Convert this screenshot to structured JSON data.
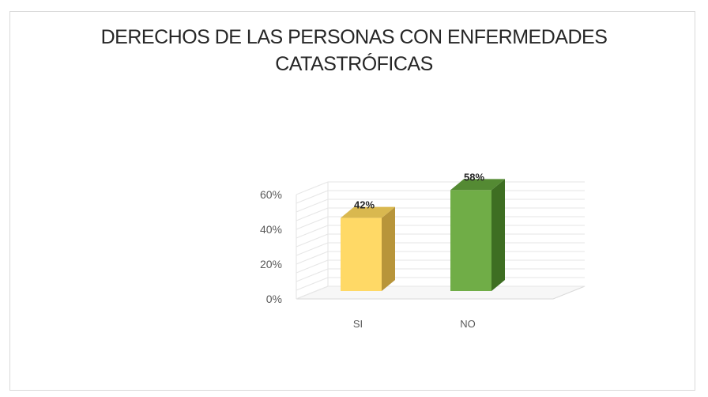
{
  "chart_data": {
    "type": "bar",
    "title_lines": [
      "DERECHOS DE LAS PERSONAS CON ENFERMEDADES",
      "CATASTRÓFICAS"
    ],
    "categories": [
      "SI",
      "NO"
    ],
    "values": [
      42,
      58
    ],
    "data_labels": [
      "42%",
      "58%"
    ],
    "y_ticks": [
      0,
      20,
      40,
      60
    ],
    "y_tick_labels": [
      "0%",
      "20%",
      "40%",
      "60%"
    ],
    "ylim": [
      0,
      60
    ],
    "grid": true,
    "legend": "none",
    "colors": {
      "SI": {
        "front": "#FFD966",
        "side": "#B8953A",
        "top": "#D9B84F"
      },
      "NO": {
        "front": "#70AD47",
        "side": "#3E6E22",
        "top": "#548A33"
      }
    }
  }
}
